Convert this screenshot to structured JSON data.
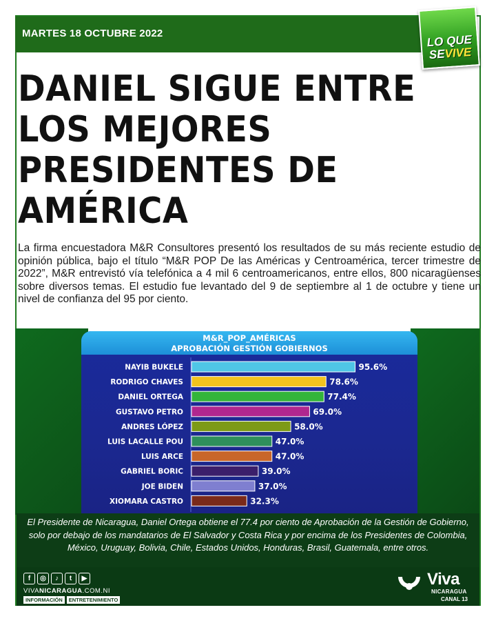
{
  "header": {
    "date": "MARTES 18 OCTUBRE 2022",
    "logo_line1": "LO QUE",
    "logo_line2_a": "SE",
    "logo_line2_b": "VIVE"
  },
  "article": {
    "headline": "DANIEL SIGUE ENTRE LOS MEJORES PRESIDENTES DE AMÉRICA",
    "intro": "La firma encuestadora M&R Consultores presentó los resultados de su más reciente estudio de opinión pública, bajo el título “M&R POP De las Américas y Centroamérica, tercer trimestre de 2022”, M&R entrevistó vía telefónica a 4 mil 6 centroamericanos, entre ellos, 800 nicaragüenses sobre diversos temas. El estudio fue levantado del 9 de septiembre al 1 de octubre y tiene un nivel de confianza del 95 por ciento.",
    "caption": "El Presidente de Nicaragua, Daniel Ortega obtiene el 77.4 por ciento de Aprobación de la Gestión de Gobierno, solo por debajo de los mandatarios de El Salvador y Costa Rica y por encima de los Presidentes de Colombia, México, Uruguay, Bolivia, Chile, Estados Unidos, Honduras, Brasil, Guatemala, entre otros."
  },
  "chart_data": {
    "type": "bar",
    "orientation": "horizontal",
    "title": "M&R_POP_AMÉRICAS",
    "subtitle": "APROBACIÓN GESTIÓN GOBIERNOS",
    "categories": [
      "NAYIB BUKELE",
      "RODRIGO CHAVES",
      "DANIEL ORTEGA",
      "GUSTAVO PETRO",
      "ANDRES LÓPEZ",
      "LUIS LACALLE POU",
      "LUIS ARCE",
      "GABRIEL BORIC",
      "JOE BIDEN",
      "XIOMARA CASTRO"
    ],
    "values": [
      95.6,
      78.6,
      77.4,
      69.0,
      58.0,
      47.0,
      47.0,
      39.0,
      37.0,
      32.3
    ],
    "value_labels": [
      "95.6%",
      "78.6%",
      "77.4%",
      "69.0%",
      "58.0%",
      "47.0%",
      "47.0%",
      "39.0%",
      "37.0%",
      "32.3%"
    ],
    "colors": [
      "#4fc6e6",
      "#f2c31e",
      "#33b53a",
      "#b0278f",
      "#7d9a17",
      "#2f8f5c",
      "#c8662a",
      "#3b1f6b",
      "#7f7fd0",
      "#7a2a1a"
    ],
    "xlim": [
      0,
      100
    ],
    "grid": false,
    "legend": "none"
  },
  "footer": {
    "site_a": "VIVA",
    "site_b": "NICARAGUA",
    "site_c": ".COM.NI",
    "tag1": "INFORMACIÓN",
    "tag2": "ENTRETENIMIENTO",
    "brand": "Viva",
    "brand_sub": "NICARAGUA",
    "brand_canal": "CANAL 13",
    "social": [
      "f",
      "◎",
      "♪",
      "t",
      "▶"
    ]
  },
  "colors": {
    "brand_green": "#1f6b1a",
    "chart_blue": "#1b2890",
    "header_cyan": "#2ea6e6"
  }
}
